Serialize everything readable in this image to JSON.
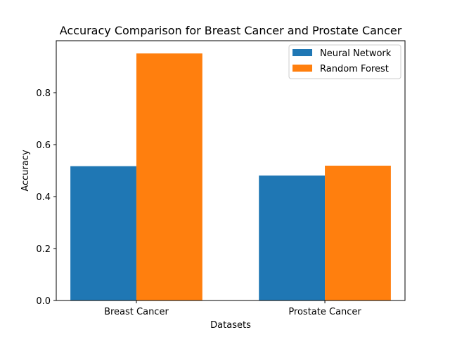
{
  "chart_data": {
    "type": "bar",
    "title": "Accuracy Comparison for Breast Cancer and Prostate Cancer",
    "xlabel": "Datasets",
    "ylabel": "Accuracy",
    "categories": [
      "Breast Cancer",
      "Prostate Cancer"
    ],
    "series": [
      {
        "name": "Neural Network",
        "values": [
          0.517,
          0.481
        ],
        "color": "#1f77b4"
      },
      {
        "name": "Random Forest",
        "values": [
          0.951,
          0.519
        ],
        "color": "#ff7f0e"
      }
    ],
    "ylim": [
      0,
      1.0
    ],
    "yticks": [
      0.0,
      0.2,
      0.4,
      0.6,
      0.8
    ],
    "ytick_labels": [
      "0.0",
      "0.2",
      "0.4",
      "0.6",
      "0.8"
    ],
    "grid": false,
    "legend_position": "top-right"
  }
}
